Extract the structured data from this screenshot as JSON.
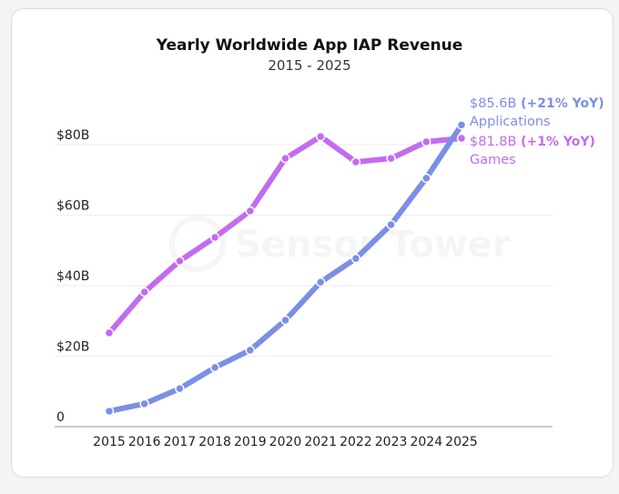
{
  "chart_data": {
    "type": "line",
    "title": "Yearly Worldwide App IAP Revenue",
    "subtitle": "2015 - 2025",
    "watermark": "Sensor Tower",
    "categories": [
      "2015",
      "2016",
      "2017",
      "2018",
      "2019",
      "2020",
      "2021",
      "2022",
      "2023",
      "2024",
      "2025"
    ],
    "yticks": [
      {
        "v": 0,
        "label": "0"
      },
      {
        "v": 20,
        "label": "$20B"
      },
      {
        "v": 40,
        "label": "$40B"
      },
      {
        "v": 60,
        "label": "$60B"
      },
      {
        "v": 80,
        "label": "$80B"
      }
    ],
    "ylim": [
      0,
      90
    ],
    "grid": true,
    "series": [
      {
        "name": "Games",
        "color": "#c26cf0",
        "values": [
          26.6,
          38.2,
          47.0,
          53.7,
          61.2,
          76.1,
          82.3,
          75.1,
          76.1,
          80.8,
          81.8
        ],
        "end_value": "$81.8B",
        "end_change": "(+1% YoY)"
      },
      {
        "name": "Applications",
        "color": "#7b8fe6",
        "values": [
          4.4,
          6.5,
          10.8,
          16.8,
          21.7,
          30.2,
          41.0,
          47.7,
          57.3,
          70.5,
          85.6
        ],
        "end_value": "$85.6B",
        "end_change": "(+21% YoY)"
      }
    ]
  }
}
